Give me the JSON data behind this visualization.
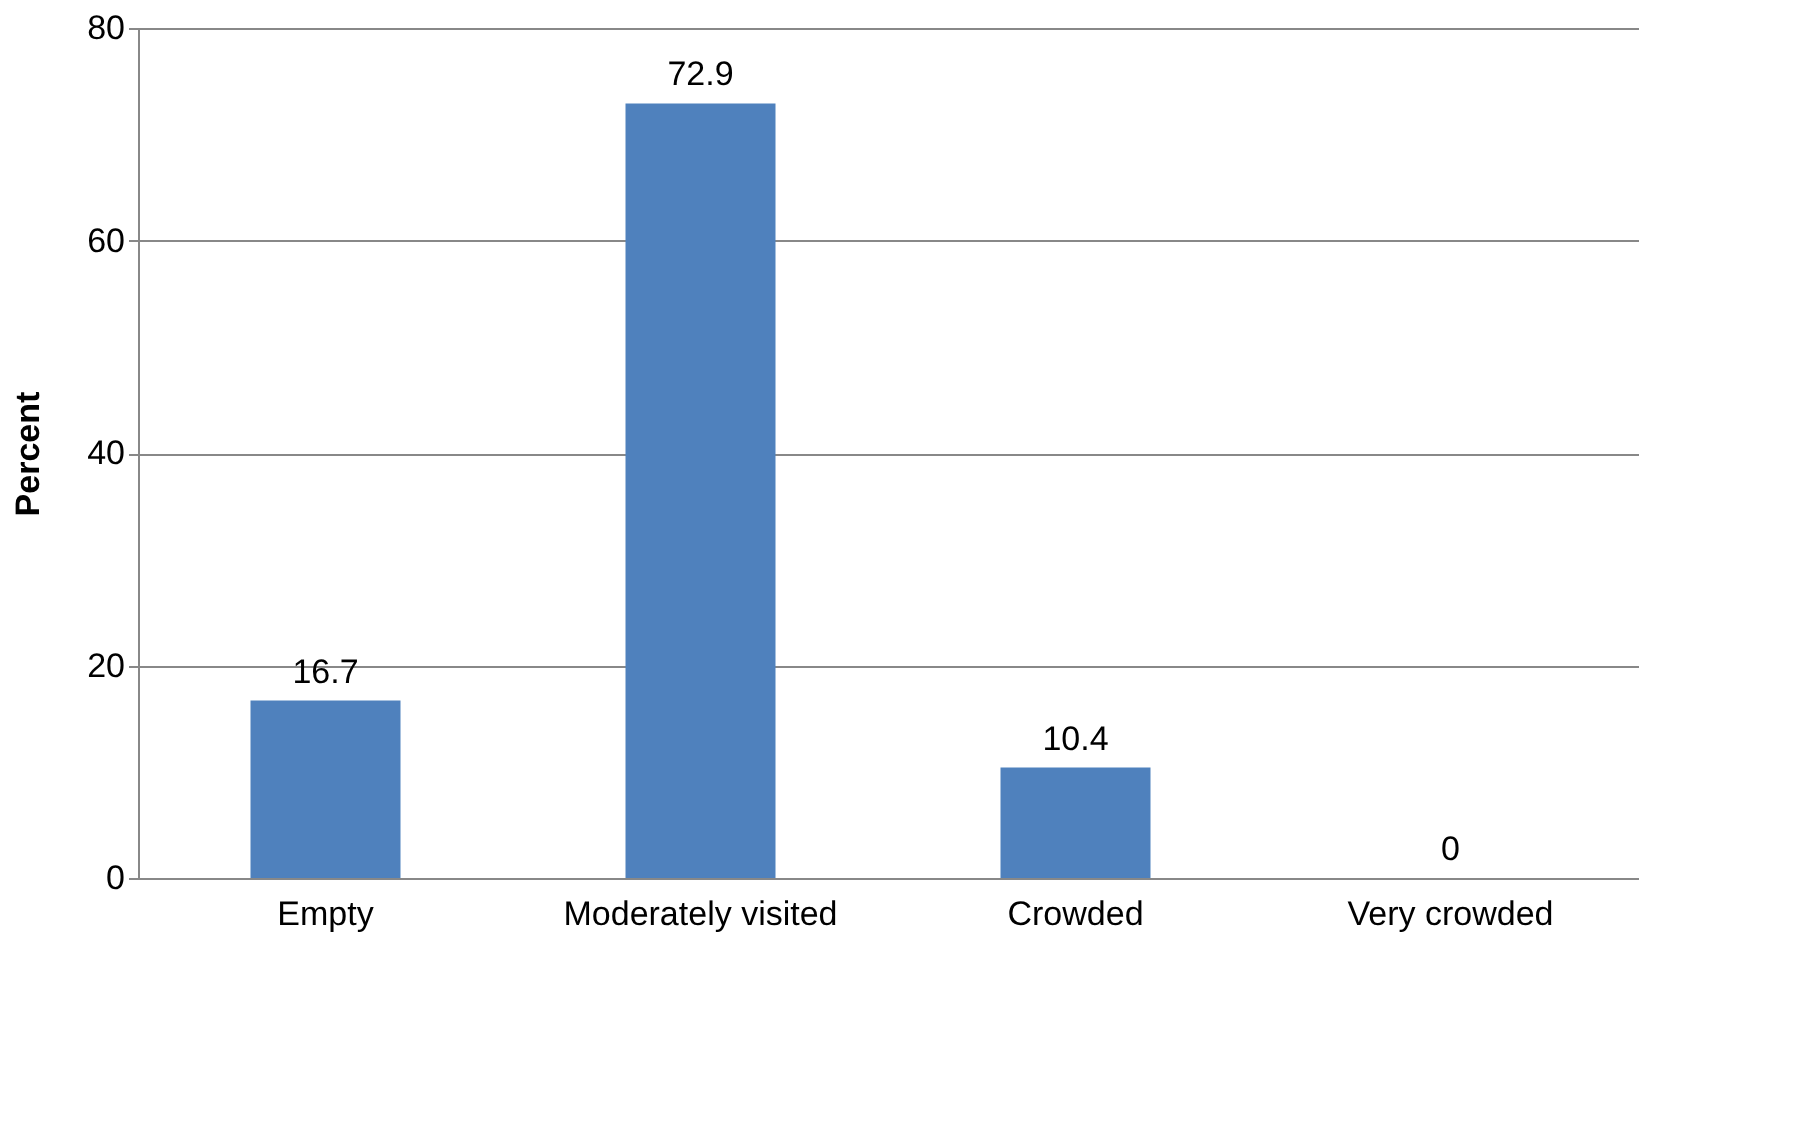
{
  "chart_data": {
    "type": "bar",
    "ylabel": "Percent",
    "categories": [
      "Empty",
      "Moderately visited",
      "Crowded",
      "Very crowded"
    ],
    "values": [
      16.7,
      72.9,
      10.4,
      0
    ],
    "color": "#4f81bd",
    "ylim": [
      0,
      80
    ],
    "yticks": [
      0,
      20,
      40,
      60,
      80
    ],
    "grid": "y",
    "data_labels": true
  }
}
